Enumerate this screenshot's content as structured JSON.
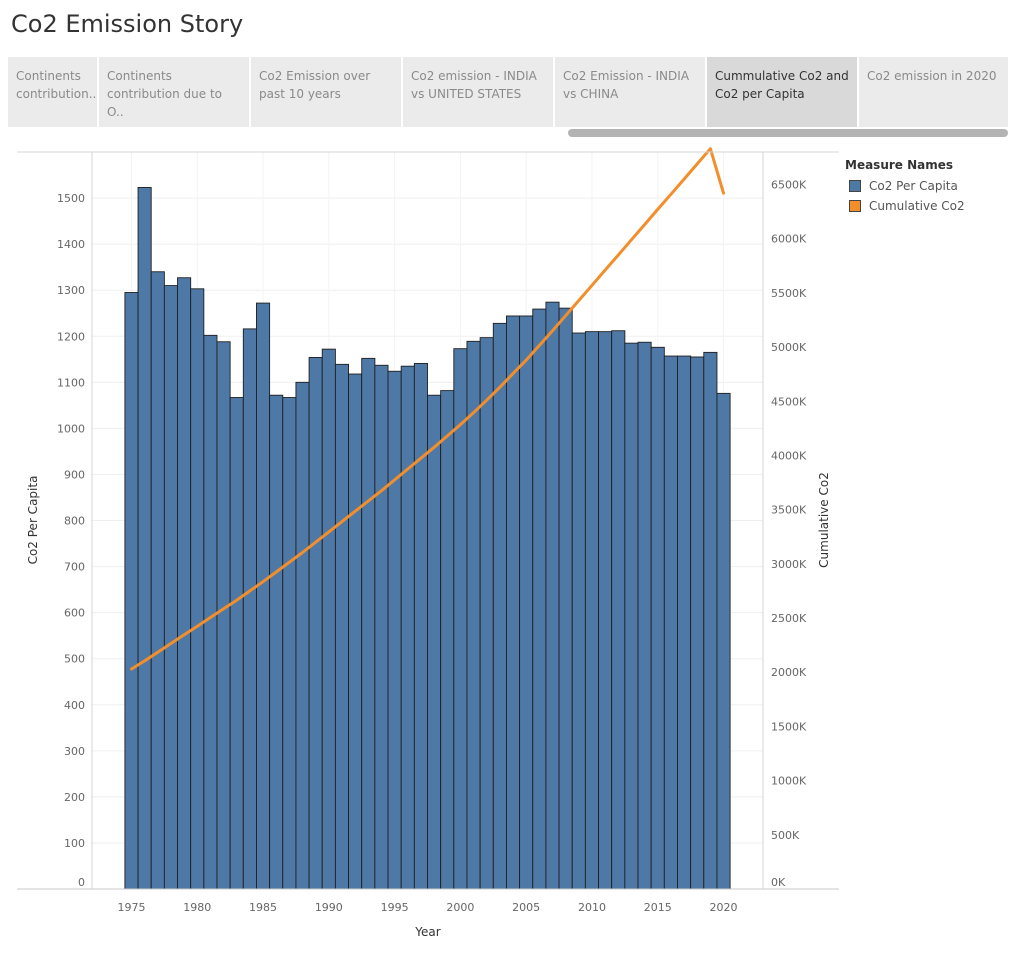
{
  "story": {
    "title": "Co2 Emission Story"
  },
  "tabs": [
    {
      "label": "Continents contribution..",
      "active": false
    },
    {
      "label": "Continents contribution due to O..",
      "active": false
    },
    {
      "label": "Co2 Emission over past 10 years",
      "active": false
    },
    {
      "label": "Co2 emission - INDIA vs UNITED STATES",
      "active": false
    },
    {
      "label": "Co2 Emission - INDIA vs CHINA",
      "active": false
    },
    {
      "label": "Cummulative Co2 and Co2 per Capita",
      "active": true
    },
    {
      "label": "Co2 emission in 2020",
      "active": false
    }
  ],
  "legend": {
    "title": "Measure Names",
    "items": [
      {
        "label": "Co2 Per Capita",
        "color": "#4e79a7"
      },
      {
        "label": "Cumulative Co2",
        "color": "#f28e2b"
      }
    ]
  },
  "chart_data": {
    "type": "bar",
    "xlabel": "Year",
    "ylabel": "Co2 Per Capita",
    "y2label": "Cumulative Co2",
    "ylim": [
      0,
      1600
    ],
    "y2lim": [
      0,
      6800000
    ],
    "xlim": [
      1972,
      2023
    ],
    "x_ticks": [
      1975,
      1980,
      1985,
      1990,
      1995,
      2000,
      2005,
      2010,
      2015,
      2020
    ],
    "y_ticks": [
      0,
      100,
      200,
      300,
      400,
      500,
      600,
      700,
      800,
      900,
      1000,
      1100,
      1200,
      1300,
      1400,
      1500
    ],
    "y2_ticks": [
      {
        "value": 0,
        "label": "0K"
      },
      {
        "value": 500000,
        "label": "500K"
      },
      {
        "value": 1000000,
        "label": "1000K"
      },
      {
        "value": 1500000,
        "label": "1500K"
      },
      {
        "value": 2000000,
        "label": "2000K"
      },
      {
        "value": 2500000,
        "label": "2500K"
      },
      {
        "value": 3000000,
        "label": "3000K"
      },
      {
        "value": 3500000,
        "label": "3500K"
      },
      {
        "value": 4000000,
        "label": "4000K"
      },
      {
        "value": 4500000,
        "label": "4500K"
      },
      {
        "value": 5000000,
        "label": "5000K"
      },
      {
        "value": 5500000,
        "label": "5500K"
      },
      {
        "value": 6000000,
        "label": "6000K"
      },
      {
        "value": 6500000,
        "label": "6500K"
      }
    ],
    "grid": true,
    "legend_position": "right",
    "series": [
      {
        "name": "Co2 Per Capita",
        "type": "bar",
        "color": "#4e79a7",
        "axis": "left",
        "x": [
          1975,
          1976,
          1977,
          1978,
          1979,
          1980,
          1981,
          1982,
          1983,
          1984,
          1985,
          1986,
          1987,
          1988,
          1989,
          1990,
          1991,
          1992,
          1993,
          1994,
          1995,
          1996,
          1997,
          1998,
          1999,
          2000,
          2001,
          2002,
          2003,
          2004,
          2005,
          2006,
          2007,
          2008,
          2009,
          2010,
          2011,
          2012,
          2013,
          2014,
          2015,
          2016,
          2017,
          2018,
          2019,
          2020
        ],
        "values": [
          1295,
          1523,
          1340,
          1310,
          1327,
          1303,
          1202,
          1188,
          1067,
          1216,
          1272,
          1072,
          1067,
          1100,
          1154,
          1172,
          1139,
          1118,
          1152,
          1137,
          1124,
          1135,
          1141,
          1072,
          1082,
          1173,
          1189,
          1197,
          1228,
          1244,
          1244,
          1259,
          1274,
          1261,
          1207,
          1210,
          1210,
          1212,
          1185,
          1187,
          1176,
          1157,
          1157,
          1155,
          1165,
          1076
        ]
      },
      {
        "name": "Cumulative Co2",
        "type": "line",
        "color": "#f28e2b",
        "axis": "right",
        "x": [
          1975,
          1976,
          1977,
          1978,
          1979,
          1980,
          1981,
          1982,
          1983,
          1984,
          1985,
          1986,
          1987,
          1988,
          1989,
          1990,
          1991,
          1992,
          1993,
          1994,
          1995,
          1996,
          1997,
          1998,
          1999,
          2000,
          2001,
          2002,
          2003,
          2004,
          2005,
          2006,
          2007,
          2008,
          2009,
          2010,
          2011,
          2012,
          2013,
          2014,
          2015,
          2016,
          2017,
          2018,
          2019,
          2020
        ],
        "values": [
          2030000,
          2105000,
          2185000,
          2265000,
          2345000,
          2425000,
          2505000,
          2585000,
          2665000,
          2750000,
          2835000,
          2925000,
          3015000,
          3105000,
          3200000,
          3295000,
          3390000,
          3485000,
          3580000,
          3675000,
          3775000,
          3875000,
          3975000,
          4075000,
          4180000,
          4285000,
          4395000,
          4510000,
          4630000,
          4755000,
          4880000,
          5015000,
          5150000,
          5290000,
          5430000,
          5570000,
          5710000,
          5850000,
          5990000,
          6130000,
          6270000,
          6410000,
          6550000,
          6690000,
          6830000,
          6420000
        ]
      }
    ]
  }
}
